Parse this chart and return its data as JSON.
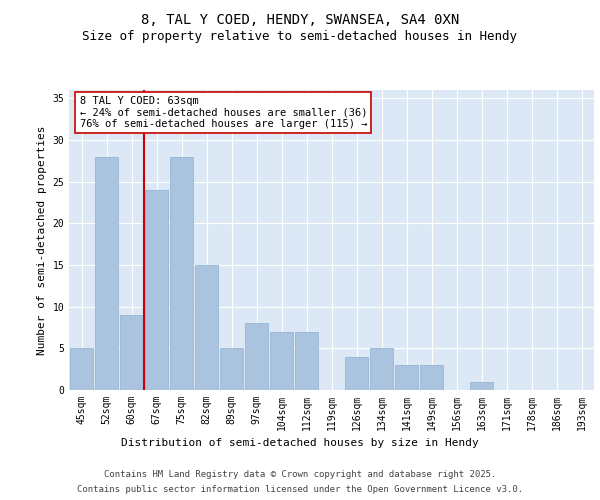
{
  "title1": "8, TAL Y COED, HENDY, SWANSEA, SA4 0XN",
  "title2": "Size of property relative to semi-detached houses in Hendy",
  "xlabel": "Distribution of semi-detached houses by size in Hendy",
  "ylabel": "Number of semi-detached properties",
  "categories": [
    "45sqm",
    "52sqm",
    "60sqm",
    "67sqm",
    "75sqm",
    "82sqm",
    "89sqm",
    "97sqm",
    "104sqm",
    "112sqm",
    "119sqm",
    "126sqm",
    "134sqm",
    "141sqm",
    "149sqm",
    "156sqm",
    "163sqm",
    "171sqm",
    "178sqm",
    "186sqm",
    "193sqm"
  ],
  "values": [
    5,
    28,
    9,
    24,
    28,
    15,
    5,
    8,
    7,
    7,
    0,
    4,
    5,
    3,
    3,
    0,
    1,
    0,
    0,
    0,
    0
  ],
  "bar_color": "#aac4df",
  "bar_edge_color": "#8ab0d0",
  "vline_color": "#cc0000",
  "annotation_title": "8 TAL Y COED: 63sqm",
  "annotation_line2": "← 24% of semi-detached houses are smaller (36)",
  "annotation_line3": "76% of semi-detached houses are larger (115) →",
  "annotation_box_color": "#cc0000",
  "ylim": [
    0,
    36
  ],
  "yticks": [
    0,
    5,
    10,
    15,
    20,
    25,
    30,
    35
  ],
  "background_color": "#dce8f5",
  "footer1": "Contains HM Land Registry data © Crown copyright and database right 2025.",
  "footer2": "Contains public sector information licensed under the Open Government Licence v3.0.",
  "title_fontsize": 10,
  "subtitle_fontsize": 9,
  "axis_fontsize": 8,
  "tick_fontsize": 7,
  "annot_fontsize": 7.5,
  "footer_fontsize": 6.5
}
